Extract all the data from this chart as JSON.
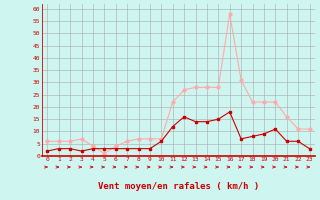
{
  "hours": [
    0,
    1,
    2,
    3,
    4,
    5,
    6,
    7,
    8,
    9,
    10,
    11,
    12,
    13,
    14,
    15,
    16,
    17,
    18,
    19,
    20,
    21,
    22,
    23
  ],
  "wind_avg": [
    2,
    3,
    3,
    2,
    3,
    3,
    3,
    3,
    3,
    3,
    6,
    12,
    16,
    14,
    14,
    15,
    18,
    7,
    8,
    9,
    11,
    6,
    6,
    3
  ],
  "wind_gust": [
    6,
    6,
    6,
    7,
    4,
    1,
    4,
    6,
    7,
    7,
    7,
    22,
    27,
    28,
    28,
    28,
    58,
    31,
    22,
    22,
    22,
    16,
    11,
    11
  ],
  "line_avg_color": "#cc0000",
  "line_gust_color": "#ffaaaa",
  "bg_color": "#cef5f0",
  "grid_color": "#aaaaaa",
  "axis_label_color": "#cc0000",
  "tick_color": "#cc0000",
  "xlabel": "Vent moyen/en rafales ( km/h )",
  "ylim": [
    0,
    62
  ],
  "yticks": [
    0,
    5,
    10,
    15,
    20,
    25,
    30,
    35,
    40,
    45,
    50,
    55,
    60
  ],
  "label_fontsize": 6.5
}
